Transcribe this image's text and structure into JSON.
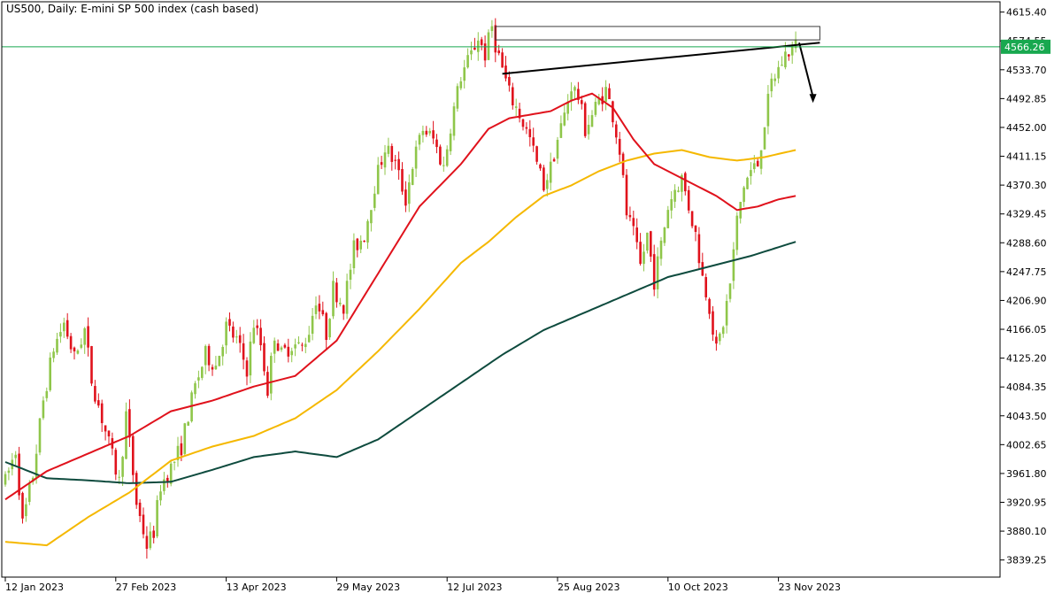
{
  "window": {
    "title": "US500, Daily:  E-mini SP 500 index (cash based)"
  },
  "colors": {
    "bull": "#8fc64a",
    "bear": "#e0121c",
    "sma_fast": "#e0121c",
    "sma_mid": "#f5b800",
    "sma_slow": "#0e4b3e",
    "price_line": "#18a84f",
    "price_label_bg": "#18a84f",
    "price_label_text": "#ffffff",
    "axis": "#000000",
    "trend": "#000000"
  },
  "chart_data": {
    "type": "candlestick",
    "symbol": "US500",
    "timeframe": "Daily",
    "ylim": [
      3815,
      4630
    ],
    "y_ticks": [
      "4615.40",
      "4574.55",
      "4533.70",
      "4492.85",
      "4452.00",
      "4411.15",
      "4370.30",
      "4329.45",
      "4288.60",
      "4247.75",
      "4206.90",
      "4166.05",
      "4125.20",
      "4084.35",
      "4043.50",
      "4002.65",
      "3961.80",
      "3920.95",
      "3880.10",
      "3839.25"
    ],
    "x_ticks": [
      {
        "index": 0,
        "label": "12 Jan 2023"
      },
      {
        "index": 32,
        "label": "27 Feb 2023"
      },
      {
        "index": 64,
        "label": "13 Apr 2023"
      },
      {
        "index": 96,
        "label": "29 May 2023"
      },
      {
        "index": 128,
        "label": "12 Jul 2023"
      },
      {
        "index": 160,
        "label": "25 Aug 2023"
      },
      {
        "index": 192,
        "label": "10 Oct 2023"
      },
      {
        "index": 224,
        "label": "23 Nov 2023"
      }
    ],
    "last_price": "4566.26",
    "anchors": [
      [
        0,
        3950
      ],
      [
        3,
        3995
      ],
      [
        5,
        3890
      ],
      [
        8,
        3960
      ],
      [
        11,
        4065
      ],
      [
        14,
        4140
      ],
      [
        17,
        4175
      ],
      [
        20,
        4125
      ],
      [
        23,
        4165
      ],
      [
        25,
        4095
      ],
      [
        28,
        4040
      ],
      [
        31,
        3985
      ],
      [
        33,
        3950
      ],
      [
        35,
        4045
      ],
      [
        38,
        3920
      ],
      [
        41,
        3860
      ],
      [
        43,
        3880
      ],
      [
        45,
        3945
      ],
      [
        48,
        3970
      ],
      [
        51,
        4000
      ],
      [
        53,
        4045
      ],
      [
        55,
        4085
      ],
      [
        58,
        4130
      ],
      [
        61,
        4115
      ],
      [
        64,
        4170
      ],
      [
        67,
        4150
      ],
      [
        70,
        4110
      ],
      [
        72,
        4175
      ],
      [
        74,
        4145
      ],
      [
        76,
        4080
      ],
      [
        78,
        4160
      ],
      [
        80,
        4130
      ],
      [
        83,
        4145
      ],
      [
        86,
        4140
      ],
      [
        88,
        4165
      ],
      [
        90,
        4210
      ],
      [
        93,
        4160
      ],
      [
        95,
        4225
      ],
      [
        98,
        4200
      ],
      [
        101,
        4280
      ],
      [
        104,
        4300
      ],
      [
        107,
        4370
      ],
      [
        110,
        4425
      ],
      [
        113,
        4400
      ],
      [
        116,
        4350
      ],
      [
        118,
        4400
      ],
      [
        121,
        4450
      ],
      [
        124,
        4435
      ],
      [
        127,
        4395
      ],
      [
        129,
        4455
      ],
      [
        132,
        4525
      ],
      [
        135,
        4555
      ],
      [
        137,
        4580
      ],
      [
        139,
        4555
      ],
      [
        141,
        4595
      ],
      [
        142,
        4570
      ],
      [
        144,
        4535
      ],
      [
        146,
        4500
      ],
      [
        149,
        4470
      ],
      [
        152,
        4435
      ],
      [
        154,
        4400
      ],
      [
        156,
        4370
      ],
      [
        158,
        4395
      ],
      [
        160,
        4435
      ],
      [
        162,
        4470
      ],
      [
        164,
        4512
      ],
      [
        166,
        4495
      ],
      [
        168,
        4450
      ],
      [
        170,
        4470
      ],
      [
        172,
        4490
      ],
      [
        174,
        4505
      ],
      [
        176,
        4470
      ],
      [
        178,
        4420
      ],
      [
        180,
        4330
      ],
      [
        182,
        4300
      ],
      [
        184,
        4255
      ],
      [
        186,
        4300
      ],
      [
        188,
        4235
      ],
      [
        190,
        4285
      ],
      [
        192,
        4340
      ],
      [
        194,
        4365
      ],
      [
        196,
        4380
      ],
      [
        198,
        4340
      ],
      [
        200,
        4300
      ],
      [
        202,
        4240
      ],
      [
        204,
        4200
      ],
      [
        206,
        4135
      ],
      [
        208,
        4175
      ],
      [
        210,
        4230
      ],
      [
        212,
        4320
      ],
      [
        214,
        4370
      ],
      [
        216,
        4390
      ],
      [
        218,
        4400
      ],
      [
        220,
        4460
      ],
      [
        222,
        4515
      ],
      [
        224,
        4535
      ],
      [
        226,
        4555
      ],
      [
        228,
        4565
      ],
      [
        229,
        4567
      ]
    ],
    "sma_fast_points": [
      [
        0,
        3925
      ],
      [
        12,
        3965
      ],
      [
        24,
        3990
      ],
      [
        36,
        4015
      ],
      [
        48,
        4050
      ],
      [
        60,
        4065
      ],
      [
        72,
        4085
      ],
      [
        84,
        4100
      ],
      [
        96,
        4150
      ],
      [
        108,
        4245
      ],
      [
        120,
        4340
      ],
      [
        132,
        4400
      ],
      [
        140,
        4450
      ],
      [
        146,
        4465
      ],
      [
        152,
        4470
      ],
      [
        158,
        4475
      ],
      [
        164,
        4490
      ],
      [
        170,
        4500
      ],
      [
        176,
        4480
      ],
      [
        182,
        4435
      ],
      [
        188,
        4400
      ],
      [
        194,
        4385
      ],
      [
        200,
        4370
      ],
      [
        206,
        4355
      ],
      [
        212,
        4335
      ],
      [
        218,
        4340
      ],
      [
        224,
        4350
      ],
      [
        229,
        4355
      ]
    ],
    "sma_mid_points": [
      [
        0,
        3865
      ],
      [
        12,
        3860
      ],
      [
        24,
        3900
      ],
      [
        36,
        3935
      ],
      [
        48,
        3980
      ],
      [
        60,
        4000
      ],
      [
        72,
        4015
      ],
      [
        84,
        4040
      ],
      [
        96,
        4080
      ],
      [
        108,
        4135
      ],
      [
        120,
        4195
      ],
      [
        132,
        4260
      ],
      [
        140,
        4290
      ],
      [
        148,
        4325
      ],
      [
        156,
        4355
      ],
      [
        164,
        4370
      ],
      [
        172,
        4390
      ],
      [
        180,
        4405
      ],
      [
        188,
        4415
      ],
      [
        196,
        4420
      ],
      [
        204,
        4410
      ],
      [
        212,
        4405
      ],
      [
        220,
        4410
      ],
      [
        229,
        4420
      ]
    ],
    "sma_slow_points": [
      [
        0,
        3978
      ],
      [
        12,
        3955
      ],
      [
        24,
        3952
      ],
      [
        36,
        3948
      ],
      [
        48,
        3950
      ],
      [
        60,
        3967
      ],
      [
        72,
        3985
      ],
      [
        84,
        3993
      ],
      [
        96,
        3985
      ],
      [
        108,
        4010
      ],
      [
        120,
        4050
      ],
      [
        132,
        4090
      ],
      [
        144,
        4130
      ],
      [
        156,
        4165
      ],
      [
        168,
        4190
      ],
      [
        180,
        4215
      ],
      [
        192,
        4240
      ],
      [
        204,
        4255
      ],
      [
        216,
        4270
      ],
      [
        229,
        4290
      ]
    ],
    "annotations": {
      "resistance_box": {
        "x_start": 142,
        "x_end": 236,
        "y_low": 4576,
        "y_high": 4595
      },
      "trendline": {
        "from": [
          144,
          4528
        ],
        "to": [
          236,
          4572
        ]
      },
      "arrow": {
        "from": [
          230,
          4572
        ],
        "to": [
          234,
          4488
        ]
      }
    }
  }
}
